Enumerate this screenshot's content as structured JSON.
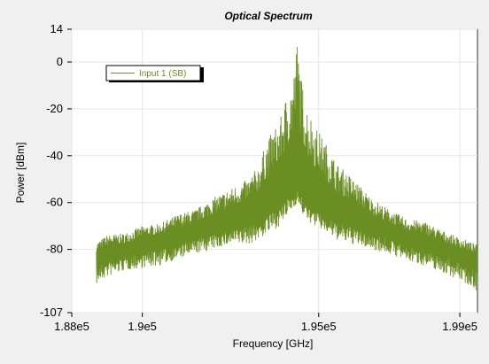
{
  "chart_data": {
    "type": "line",
    "title": "Optical Spectrum",
    "xlabel": "Frequency [GHz]",
    "ylabel": "Power [dBm]",
    "xlim": [
      188000,
      199500
    ],
    "ylim": [
      -107,
      14
    ],
    "x_ticks": [
      {
        "value": 188000,
        "label": "1.88e5"
      },
      {
        "value": 190000,
        "label": "1.9e5"
      },
      {
        "value": 195000,
        "label": "1.95e5"
      },
      {
        "value": 199000,
        "label": "1.99e5"
      }
    ],
    "y_ticks": [
      {
        "value": 14,
        "label": "14"
      },
      {
        "value": 0,
        "label": "0"
      },
      {
        "value": -20,
        "label": "-20"
      },
      {
        "value": -40,
        "label": "-40"
      },
      {
        "value": -60,
        "label": "-60"
      },
      {
        "value": -80,
        "label": "-80"
      },
      {
        "value": -107,
        "label": "-107"
      }
    ],
    "grid": true,
    "legend_position": "top-left",
    "series": [
      {
        "name": "Input 1  (SB)",
        "color": "#6b8e23",
        "x": [
          188700,
          189000,
          189500,
          190000,
          190500,
          191000,
          191500,
          192000,
          192500,
          193000,
          193300,
          193500,
          193700,
          193900,
          194000,
          194100,
          194200,
          194300,
          194400,
          194500,
          194600,
          194700,
          194900,
          195100,
          195300,
          195500,
          196000,
          196500,
          197000,
          197500,
          198000,
          198500,
          199000,
          199500
        ],
        "upper": [
          -77,
          -74,
          -73,
          -70,
          -69,
          -65,
          -63,
          -58,
          -54,
          -50,
          -44,
          -35,
          -29,
          -25,
          -19,
          -13,
          -10,
          -3,
          11,
          -6,
          -14,
          -20,
          -27,
          -32,
          -37,
          -43,
          -50,
          -58,
          -63,
          -67,
          -68,
          -72,
          -75,
          -78
        ],
        "mid": [
          -84,
          -82,
          -81,
          -79,
          -77,
          -76,
          -73,
          -71,
          -69,
          -67,
          -65,
          -62,
          -61,
          -59,
          -58,
          -56,
          -55,
          -54,
          -52,
          -55,
          -57,
          -60,
          -61,
          -62,
          -64,
          -66,
          -68,
          -71,
          -73,
          -76,
          -78,
          -80,
          -83,
          -85
        ],
        "lower": [
          -95,
          -92,
          -89,
          -88,
          -87,
          -84,
          -82,
          -80,
          -78,
          -78,
          -76,
          -74,
          -72,
          -70,
          -68,
          -66,
          -64,
          -62,
          -60,
          -64,
          -66,
          -68,
          -70,
          -72,
          -74,
          -76,
          -78,
          -80,
          -82,
          -85,
          -87,
          -90,
          -93,
          -98
        ]
      }
    ]
  }
}
